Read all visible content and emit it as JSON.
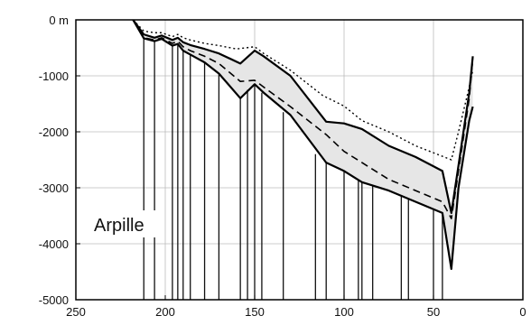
{
  "chart_data": {
    "type": "line",
    "title": "",
    "xlabel": "",
    "ylabel": "",
    "xlim": [
      250,
      0
    ],
    "ylim": [
      -5000,
      0
    ],
    "x_reversed": true,
    "grid": true,
    "x_ticks": [
      250,
      200,
      150,
      100,
      50,
      0
    ],
    "x_tick_labels": [
      "250",
      "200",
      "150",
      "100",
      "50",
      "0"
    ],
    "y_ticks": [
      0,
      -1000,
      -2000,
      -3000,
      -4000,
      -5000
    ],
    "y_tick_labels": [
      "0 m",
      "-1000",
      "-2000",
      "-3000",
      "-4000",
      "-5000"
    ],
    "annotation": "Arpille",
    "series": [
      {
        "style": "dotted",
        "x": [
          218,
          212,
          206,
          202,
          196,
          193,
          190,
          186,
          178,
          170,
          160,
          150,
          145,
          130,
          112,
          100,
          90,
          75,
          60,
          40,
          36,
          30,
          28
        ],
        "y": [
          0,
          -200,
          -230,
          -230,
          -300,
          -260,
          -320,
          -360,
          -420,
          -460,
          -520,
          -480,
          -600,
          -900,
          -1350,
          -1540,
          -1800,
          -2000,
          -2250,
          -2500,
          -2000,
          -1200,
          -900
        ]
      },
      {
        "style": "solid",
        "x": [
          218,
          212,
          206,
          202,
          196,
          193,
          190,
          186,
          178,
          170,
          158,
          150,
          145,
          130,
          110,
          100,
          90,
          75,
          60,
          45,
          40,
          36,
          30,
          28
        ],
        "y": [
          0,
          -260,
          -320,
          -280,
          -360,
          -320,
          -400,
          -450,
          -520,
          -600,
          -780,
          -550,
          -650,
          -1000,
          -1820,
          -1850,
          -1950,
          -2250,
          -2450,
          -2700,
          -3450,
          -2600,
          -1300,
          -650
        ]
      },
      {
        "style": "dashed",
        "x": [
          218,
          212,
          206,
          202,
          196,
          193,
          190,
          186,
          178,
          170,
          158,
          150,
          145,
          130,
          110,
          100,
          90,
          75,
          60,
          45,
          40,
          36,
          30,
          28
        ],
        "y": [
          0,
          -320,
          -360,
          -320,
          -420,
          -380,
          -480,
          -550,
          -650,
          -780,
          -1100,
          -1080,
          -1200,
          -1550,
          -2050,
          -2350,
          -2550,
          -2850,
          -3050,
          -3250,
          -3550,
          -2700,
          -1400,
          -700
        ]
      },
      {
        "style": "solid",
        "x": [
          218,
          212,
          206,
          202,
          196,
          193,
          190,
          186,
          178,
          170,
          158,
          150,
          145,
          130,
          110,
          100,
          90,
          75,
          60,
          45,
          40,
          36,
          30,
          28
        ],
        "y": [
          0,
          -330,
          -380,
          -340,
          -460,
          -430,
          -550,
          -620,
          -760,
          -960,
          -1400,
          -1150,
          -1300,
          -1700,
          -2550,
          -2700,
          -2900,
          -3050,
          -3250,
          -3450,
          -4450,
          -3000,
          -1800,
          -1550
        ]
      }
    ],
    "wells": [
      {
        "x": 212,
        "top": -330
      },
      {
        "x": 206,
        "top": -380
      },
      {
        "x": 196,
        "top": -460
      },
      {
        "x": 193,
        "top": -430
      },
      {
        "x": 190,
        "top": -550
      },
      {
        "x": 186,
        "top": -620
      },
      {
        "x": 178,
        "top": -760
      },
      {
        "x": 170,
        "top": -960
      },
      {
        "x": 158,
        "top": -1400
      },
      {
        "x": 154,
        "top": -1250
      },
      {
        "x": 150,
        "top": -1150
      },
      {
        "x": 146,
        "top": -1300
      },
      {
        "x": 134,
        "top": -1650
      },
      {
        "x": 116,
        "top": -2400
      },
      {
        "x": 110,
        "top": -2550
      },
      {
        "x": 100,
        "top": -2700
      },
      {
        "x": 92,
        "top": -2850
      },
      {
        "x": 90,
        "top": -2900
      },
      {
        "x": 84,
        "top": -2950
      },
      {
        "x": 68,
        "top": -3150
      },
      {
        "x": 64,
        "top": -3200
      },
      {
        "x": 50,
        "top": -3400
      },
      {
        "x": 45,
        "top": -3450
      }
    ]
  }
}
